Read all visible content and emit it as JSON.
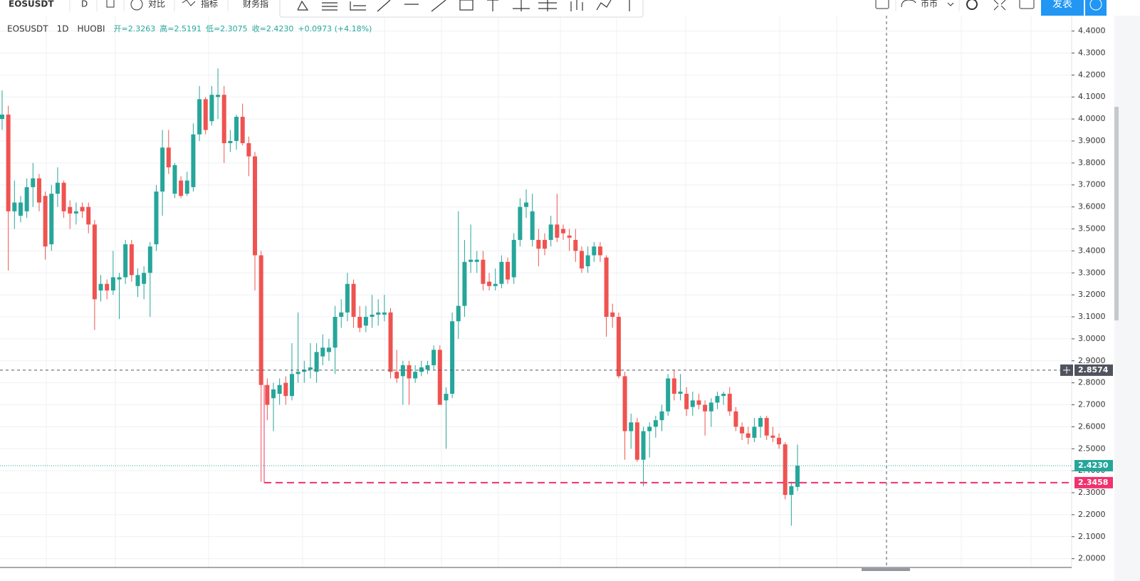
{
  "toolbar": {
    "symbol": "EOSUSDT",
    "interval": "D",
    "compare": "对比",
    "indicators": "指标",
    "financials": "财务指",
    "currency": "币币",
    "publish": "发表"
  },
  "chart_data": {
    "type": "candlestick",
    "symbol_info": [
      "EOSUSDT",
      "1D",
      "HUOBI"
    ],
    "ohlc_info": [
      "开=2.3263",
      "高=2.5191",
      "低=2.3075",
      "收=2.4230",
      "+0.0973 (+4.18%)"
    ],
    "up_color": "#26a69a",
    "down_color": "#ef5350",
    "candles": [
      [
        4.0,
        4.13,
        3.95,
        4.02
      ],
      [
        4.02,
        4.06,
        3.31,
        3.58
      ],
      [
        3.58,
        3.72,
        3.5,
        3.62
      ],
      [
        3.56,
        3.65,
        3.53,
        3.62
      ],
      [
        3.58,
        3.73,
        3.55,
        3.69
      ],
      [
        3.69,
        3.8,
        3.6,
        3.73
      ],
      [
        3.73,
        3.75,
        3.58,
        3.62
      ],
      [
        3.65,
        3.67,
        3.36,
        3.42
      ],
      [
        3.43,
        3.7,
        3.4,
        3.66
      ],
      [
        3.66,
        3.78,
        3.6,
        3.71
      ],
      [
        3.71,
        3.72,
        3.55,
        3.58
      ],
      [
        3.6,
        3.63,
        3.5,
        3.57
      ],
      [
        3.57,
        3.62,
        3.52,
        3.58
      ],
      [
        3.6,
        3.62,
        3.55,
        3.58
      ],
      [
        3.6,
        3.62,
        3.48,
        3.52
      ],
      [
        3.52,
        3.54,
        3.04,
        3.18
      ],
      [
        3.22,
        3.29,
        3.17,
        3.25
      ],
      [
        3.25,
        3.27,
        3.18,
        3.22
      ],
      [
        3.22,
        3.4,
        3.2,
        3.28
      ],
      [
        3.27,
        3.3,
        3.09,
        3.28
      ],
      [
        3.28,
        3.45,
        3.25,
        3.43
      ],
      [
        3.43,
        3.45,
        3.26,
        3.29
      ],
      [
        3.24,
        3.32,
        3.19,
        3.29
      ],
      [
        3.25,
        3.33,
        3.18,
        3.3
      ],
      [
        3.3,
        3.44,
        3.1,
        3.42
      ],
      [
        3.43,
        3.7,
        3.4,
        3.67
      ],
      [
        3.67,
        3.95,
        3.56,
        3.87
      ],
      [
        3.87,
        3.95,
        3.75,
        3.78
      ],
      [
        3.66,
        3.8,
        3.64,
        3.79
      ],
      [
        3.72,
        3.74,
        3.64,
        3.65
      ],
      [
        3.66,
        3.76,
        3.65,
        3.72
      ],
      [
        3.69,
        3.98,
        3.67,
        3.93
      ],
      [
        3.93,
        4.15,
        3.9,
        4.09
      ],
      [
        4.09,
        4.1,
        3.93,
        3.95
      ],
      [
        3.99,
        4.15,
        3.97,
        4.11
      ],
      [
        4.1,
        4.23,
        4.0,
        4.11
      ],
      [
        4.11,
        4.15,
        3.8,
        3.89
      ],
      [
        3.89,
        3.95,
        3.85,
        3.9
      ],
      [
        3.9,
        4.02,
        3.86,
        4.01
      ],
      [
        4.01,
        4.07,
        3.88,
        3.89
      ],
      [
        3.89,
        3.92,
        3.74,
        3.83
      ],
      [
        3.83,
        3.85,
        3.22,
        3.38
      ],
      [
        3.38,
        3.4,
        2.35,
        2.79
      ],
      [
        2.79,
        2.82,
        2.63,
        2.7
      ],
      [
        2.73,
        2.8,
        2.58,
        2.77
      ],
      [
        2.75,
        2.82,
        2.7,
        2.79
      ],
      [
        2.8,
        2.83,
        2.7,
        2.74
      ],
      [
        2.74,
        2.98,
        2.72,
        2.84
      ],
      [
        2.84,
        3.12,
        2.8,
        2.85
      ],
      [
        2.85,
        2.9,
        2.8,
        2.86
      ],
      [
        2.86,
        2.98,
        2.82,
        2.87
      ],
      [
        2.85,
        2.98,
        2.8,
        2.94
      ],
      [
        2.92,
        3.02,
        2.88,
        2.96
      ],
      [
        2.94,
        3.0,
        2.9,
        2.96
      ],
      [
        2.96,
        3.15,
        2.84,
        3.1
      ],
      [
        3.1,
        3.18,
        3.05,
        3.12
      ],
      [
        3.12,
        3.3,
        3.08,
        3.25
      ],
      [
        3.25,
        3.27,
        3.05,
        3.1
      ],
      [
        3.1,
        3.15,
        3.03,
        3.05
      ],
      [
        3.06,
        3.15,
        3.03,
        3.1
      ],
      [
        3.1,
        3.2,
        3.05,
        3.11
      ],
      [
        3.11,
        3.18,
        3.06,
        3.12
      ],
      [
        3.11,
        3.2,
        3.08,
        3.12
      ],
      [
        3.12,
        3.14,
        2.82,
        2.85
      ],
      [
        2.85,
        2.95,
        2.8,
        2.82
      ],
      [
        2.83,
        2.9,
        2.7,
        2.88
      ],
      [
        2.88,
        2.9,
        2.7,
        2.82
      ],
      [
        2.82,
        2.88,
        2.8,
        2.85
      ],
      [
        2.85,
        2.9,
        2.83,
        2.87
      ],
      [
        2.86,
        2.9,
        2.84,
        2.88
      ],
      [
        2.88,
        2.97,
        2.86,
        2.95
      ],
      [
        2.95,
        2.97,
        2.7,
        2.7
      ],
      [
        2.72,
        2.78,
        2.5,
        2.75
      ],
      [
        2.75,
        3.12,
        2.73,
        3.08
      ],
      [
        3.08,
        3.58,
        3.0,
        3.15
      ],
      [
        3.15,
        3.45,
        3.1,
        3.35
      ],
      [
        3.35,
        3.52,
        3.3,
        3.36
      ],
      [
        3.35,
        3.4,
        3.3,
        3.36
      ],
      [
        3.36,
        3.4,
        3.22,
        3.25
      ],
      [
        3.26,
        3.3,
        3.22,
        3.24
      ],
      [
        3.24,
        3.32,
        3.22,
        3.25
      ],
      [
        3.25,
        3.38,
        3.23,
        3.35
      ],
      [
        3.35,
        3.37,
        3.25,
        3.27
      ],
      [
        3.28,
        3.48,
        3.25,
        3.45
      ],
      [
        3.45,
        3.64,
        3.42,
        3.6
      ],
      [
        3.6,
        3.68,
        3.55,
        3.62
      ],
      [
        3.45,
        3.66,
        3.42,
        3.58
      ],
      [
        3.45,
        3.5,
        3.33,
        3.41
      ],
      [
        3.45,
        3.48,
        3.38,
        3.41
      ],
      [
        3.45,
        3.56,
        3.42,
        3.52
      ],
      [
        3.52,
        3.66,
        3.44,
        3.46
      ],
      [
        3.5,
        3.52,
        3.45,
        3.48
      ],
      [
        3.47,
        3.5,
        3.4,
        3.46
      ],
      [
        3.45,
        3.5,
        3.35,
        3.4
      ],
      [
        3.4,
        3.42,
        3.3,
        3.32
      ],
      [
        3.33,
        3.42,
        3.3,
        3.38
      ],
      [
        3.38,
        3.44,
        3.35,
        3.42
      ],
      [
        3.42,
        3.44,
        3.35,
        3.38
      ],
      [
        3.37,
        3.38,
        3.01,
        3.1
      ],
      [
        3.12,
        3.16,
        3.05,
        3.1
      ],
      [
        3.1,
        3.12,
        2.82,
        2.83
      ],
      [
        2.83,
        2.85,
        2.45,
        2.58
      ],
      [
        2.58,
        2.66,
        2.5,
        2.62
      ],
      [
        2.62,
        2.64,
        2.44,
        2.45
      ],
      [
        2.45,
        2.6,
        2.33,
        2.58
      ],
      [
        2.58,
        2.62,
        2.46,
        2.6
      ],
      [
        2.6,
        2.65,
        2.55,
        2.63
      ],
      [
        2.63,
        2.7,
        2.58,
        2.67
      ],
      [
        2.67,
        2.84,
        2.65,
        2.82
      ],
      [
        2.82,
        2.86,
        2.72,
        2.75
      ],
      [
        2.75,
        2.84,
        2.72,
        2.76
      ],
      [
        2.75,
        2.78,
        2.65,
        2.68
      ],
      [
        2.69,
        2.76,
        2.65,
        2.72
      ],
      [
        2.72,
        2.75,
        2.68,
        2.7
      ],
      [
        2.7,
        2.72,
        2.56,
        2.67
      ],
      [
        2.67,
        2.73,
        2.6,
        2.71
      ],
      [
        2.71,
        2.76,
        2.68,
        2.74
      ],
      [
        2.74,
        2.76,
        2.7,
        2.75
      ],
      [
        2.75,
        2.78,
        2.65,
        2.67
      ],
      [
        2.67,
        2.69,
        2.58,
        2.6
      ],
      [
        2.6,
        2.62,
        2.54,
        2.57
      ],
      [
        2.57,
        2.6,
        2.52,
        2.55
      ],
      [
        2.55,
        2.64,
        2.53,
        2.6
      ],
      [
        2.6,
        2.65,
        2.55,
        2.64
      ],
      [
        2.64,
        2.65,
        2.54,
        2.56
      ],
      [
        2.56,
        2.6,
        2.53,
        2.55
      ],
      [
        2.55,
        2.57,
        2.5,
        2.52
      ],
      [
        2.52,
        2.53,
        2.27,
        2.29
      ],
      [
        2.29,
        2.35,
        2.15,
        2.33
      ],
      [
        2.3263,
        2.5191,
        2.3075,
        2.423
      ]
    ],
    "ylim": [
      1.96,
      4.47
    ],
    "yticks": [
      {
        "value": 2.0,
        "label": "2.0000"
      },
      {
        "value": 2.1,
        "label": "2.1000"
      },
      {
        "value": 2.2,
        "label": "2.2000"
      },
      {
        "value": 2.3,
        "label": "2.3000"
      },
      {
        "value": 2.4,
        "label": "2.4000"
      },
      {
        "value": 2.5,
        "label": "2.5000"
      },
      {
        "value": 2.6,
        "label": "2.6000"
      },
      {
        "value": 2.7,
        "label": "2.7000"
      },
      {
        "value": 2.8,
        "label": "2.8000"
      },
      {
        "value": 2.9,
        "label": "2.9000"
      },
      {
        "value": 3.0,
        "label": "3.0000"
      },
      {
        "value": 3.1,
        "label": "3.1000"
      },
      {
        "value": 3.2,
        "label": "3.2000"
      },
      {
        "value": 3.3,
        "label": "3.3000"
      },
      {
        "value": 3.4,
        "label": "3.4000"
      },
      {
        "value": 3.5,
        "label": "3.5000"
      },
      {
        "value": 3.6,
        "label": "3.6000"
      },
      {
        "value": 3.7,
        "label": "3.7000"
      },
      {
        "value": 3.8,
        "label": "3.8000"
      },
      {
        "value": 3.9,
        "label": "3.9000"
      },
      {
        "value": 4.0,
        "label": "4.0000"
      },
      {
        "value": 4.1,
        "label": "4.1000"
      },
      {
        "value": 4.2,
        "label": "4.2000"
      },
      {
        "value": 4.3,
        "label": "4.3000"
      },
      {
        "value": 4.4,
        "label": "4.4000"
      }
    ],
    "price_lines": [
      {
        "value": 2.8574,
        "color": "#50535e",
        "style": "crosshair"
      },
      {
        "value": 2.423,
        "label": "2.4230",
        "color": "#26a69a",
        "style": "dotted"
      },
      {
        "value": 2.3458,
        "label": "2.3458",
        "color": "#f0326e",
        "style": "dashed"
      }
    ],
    "grid": true
  }
}
